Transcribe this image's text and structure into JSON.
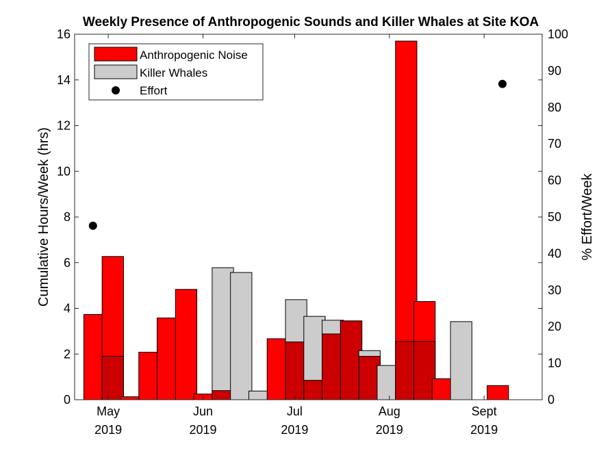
{
  "chart_data": {
    "type": "bar",
    "title": "Weekly Presence of Anthropogenic Sounds and Killer Whales at Site KOA",
    "ylabel_left": "Cumulative Hours/Week (hrs)",
    "ylabel_right": "% Effort/Week",
    "ylim_left": [
      0,
      16
    ],
    "ylim_right": [
      0,
      100
    ],
    "yticks_left": [
      0,
      2,
      4,
      6,
      8,
      10,
      12,
      14,
      16
    ],
    "yticks_right": [
      0,
      10,
      20,
      30,
      40,
      50,
      60,
      70,
      80,
      90,
      100
    ],
    "xlim": [
      "2019-04-20",
      "2019-09-20"
    ],
    "xticks": [
      {
        "date": "2019-05-01",
        "month": "May",
        "year": "2019"
      },
      {
        "date": "2019-06-01",
        "month": "Jun",
        "year": "2019"
      },
      {
        "date": "2019-07-01",
        "month": "Jul",
        "year": "2019"
      },
      {
        "date": "2019-08-01",
        "month": "Aug",
        "year": "2019"
      },
      {
        "date": "2019-09-01",
        "month": "Sept",
        "year": "2019"
      }
    ],
    "week_starts": [
      "2019-04-23",
      "2019-04-29",
      "2019-05-05",
      "2019-05-11",
      "2019-05-17",
      "2019-05-23",
      "2019-05-29",
      "2019-06-04",
      "2019-06-10",
      "2019-06-16",
      "2019-06-22",
      "2019-06-28",
      "2019-07-04",
      "2019-07-10",
      "2019-07-16",
      "2019-07-22",
      "2019-07-28",
      "2019-08-03",
      "2019-08-09",
      "2019-08-15",
      "2019-08-21",
      "2019-08-27",
      "2019-09-02"
    ],
    "series": [
      {
        "name": "Anthropogenic Noise",
        "color": "#ff0000",
        "values": [
          3.73,
          6.27,
          0.13,
          2.08,
          3.58,
          4.83,
          0.25,
          0.4,
          0,
          0,
          2.67,
          2.53,
          0.85,
          2.88,
          3.45,
          1.9,
          0,
          15.7,
          4.3,
          0.92,
          0,
          0,
          0.62
        ]
      },
      {
        "name": "Killer Whales",
        "color": "#cccccc",
        "values": [
          0,
          1.9,
          0,
          0,
          0,
          0,
          0,
          5.78,
          5.57,
          0.38,
          0,
          4.38,
          3.65,
          3.48,
          3.45,
          2.15,
          1.5,
          2.55,
          2.55,
          0,
          3.42,
          0,
          0
        ]
      },
      {
        "name": "Effort",
        "color": "#000000",
        "points": [
          {
            "date": "2019-04-26",
            "value": 47.6
          },
          {
            "date": "2019-09-07",
            "value": 86.4
          }
        ]
      }
    ],
    "overlap_color": "#cc0000",
    "legend": "top-left",
    "grid": false
  }
}
